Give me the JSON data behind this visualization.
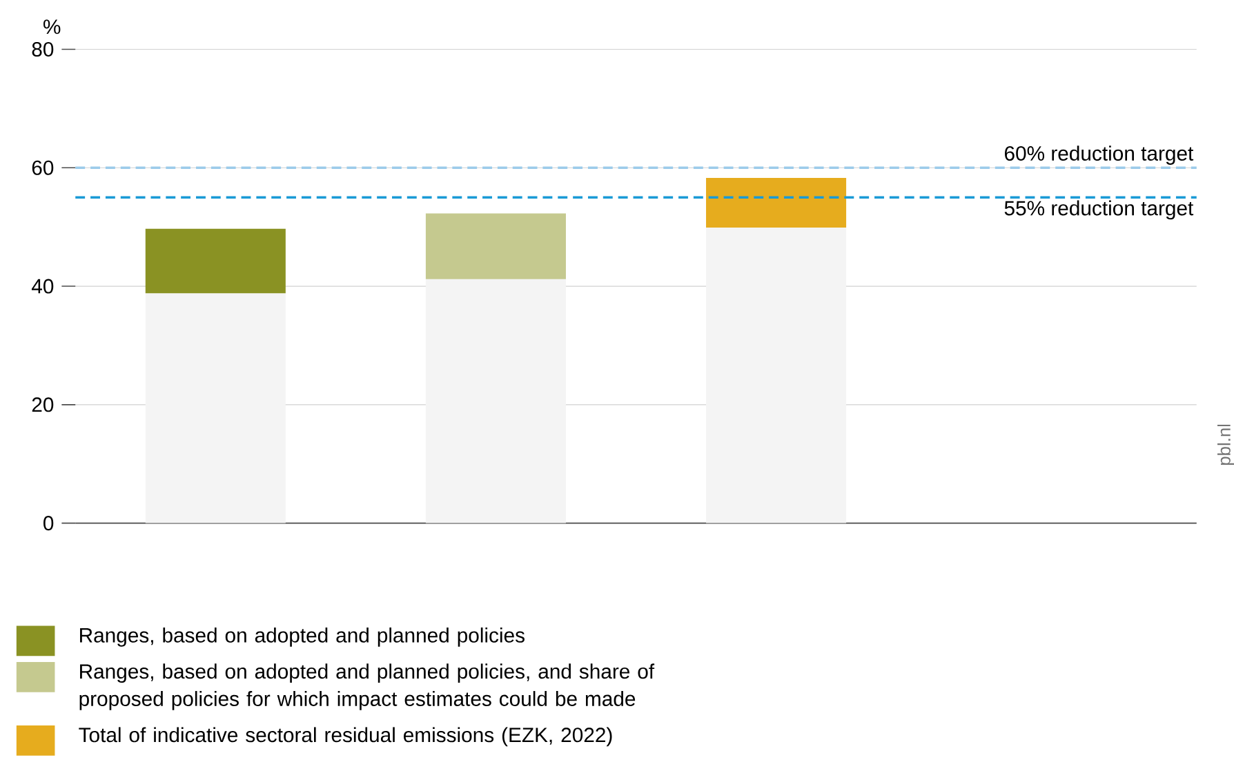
{
  "chart_data": {
    "type": "bar",
    "stacked": true,
    "ylabel": "%",
    "categories": [
      null,
      null,
      null,
      null
    ],
    "series": [
      {
        "color": "#f4f4f4",
        "values": [
          38.8,
          41.2,
          49.9,
          null
        ]
      },
      {
        "name": "Ranges, based on adopted and planned policies",
        "color": "#8a9223",
        "values": [
          10.9,
          null,
          null,
          null
        ]
      },
      {
        "name": "Ranges, based on adopted and planned policies, and share of proposed policies for which impact estimates could be made",
        "color": "#c5c98f",
        "values": [
          null,
          11.1,
          null,
          null
        ]
      },
      {
        "name": "Total of indicative sectoral residual emissions (EZK, 2022)",
        "color": "#e6ac1e",
        "values": [
          null,
          null,
          8.4,
          null
        ]
      }
    ],
    "ylim": [
      0,
      80
    ],
    "yticks": [
      0,
      20,
      40,
      60,
      80
    ],
    "grid": "y",
    "legend": "bottom",
    "ref_lines": [
      {
        "axis": "y",
        "value": 60,
        "label": "60% reduction target",
        "color": "#9ccbea",
        "line_style": "dashed"
      },
      {
        "axis": "y",
        "value": 55,
        "label": "55% reduction target",
        "color": "#1a9ad6",
        "line_style": "dashed"
      }
    ],
    "annotations": [
      "pbl.nl"
    ]
  }
}
